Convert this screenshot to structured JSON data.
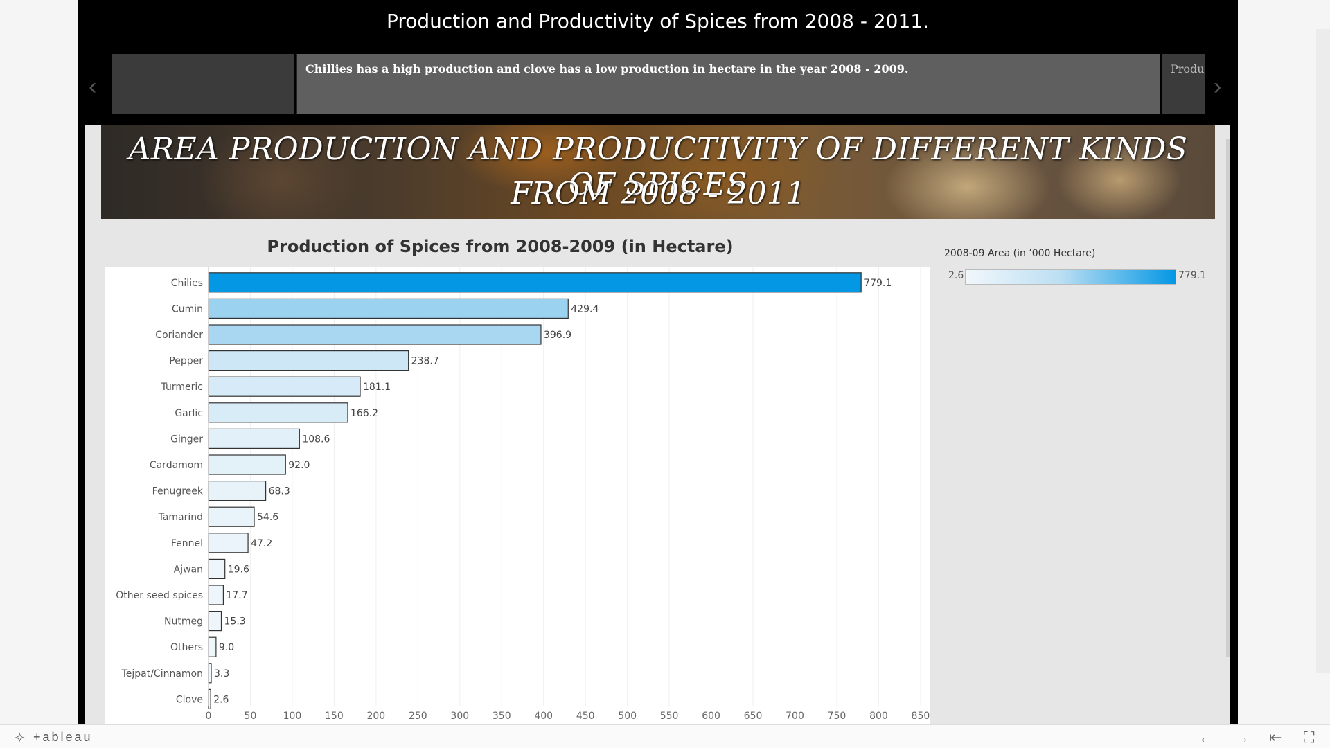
{
  "story": {
    "title": "Production and Productivity of Spices from 2008 - 2011.",
    "points": {
      "current": "Chillies has a high production and clove has a low production in hectare in the year 2008 - 2009.",
      "next": "Produ"
    }
  },
  "banner": {
    "line1": "AREA PRODUCTION AND PRODUCTIVITY OF DIFFERENT KINDS OF SPICES",
    "line2": "FROM 2008 - 2011"
  },
  "legend": {
    "title": "2008-09 Area (in ’000 Hectare)",
    "min": "2.6",
    "max": "779.1",
    "color_low": "#f1f7fb",
    "color_high": "#0497e4"
  },
  "chart_data": {
    "type": "bar",
    "orientation": "horizontal",
    "title": "Production of Spices from 2008-2009 (in Hectare)",
    "categories": [
      "Chilies",
      "Cumin",
      "Coriander",
      "Pepper",
      "Turmeric",
      "Garlic",
      "Ginger",
      "Cardamom",
      "Fenugreek",
      "Tamarind",
      "Fennel",
      "Ajwan",
      "Other seed spices",
      "Nutmeg",
      "Others",
      "Tejpat/Cinnamon",
      "Clove"
    ],
    "values": [
      779.1,
      429.4,
      396.9,
      238.7,
      181.1,
      166.2,
      108.6,
      92.0,
      68.3,
      54.6,
      47.2,
      19.6,
      17.7,
      15.3,
      9.0,
      3.3,
      2.6
    ],
    "value_labels": [
      "779.1",
      "429.4",
      "396.9",
      "238.7",
      "181.1",
      "166.2",
      "108.6",
      "92.0",
      "68.3",
      "54.6",
      "47.2",
      "19.6",
      "17.7",
      "15.3",
      "9.0",
      "3.3",
      "2.6"
    ],
    "x_ticks": [
      0,
      50,
      100,
      150,
      200,
      250,
      300,
      350,
      400,
      450,
      500,
      550,
      600,
      650,
      700,
      750,
      800,
      850
    ],
    "xlim": [
      0,
      860
    ],
    "grid": "vertical",
    "legend": "right"
  }
}
